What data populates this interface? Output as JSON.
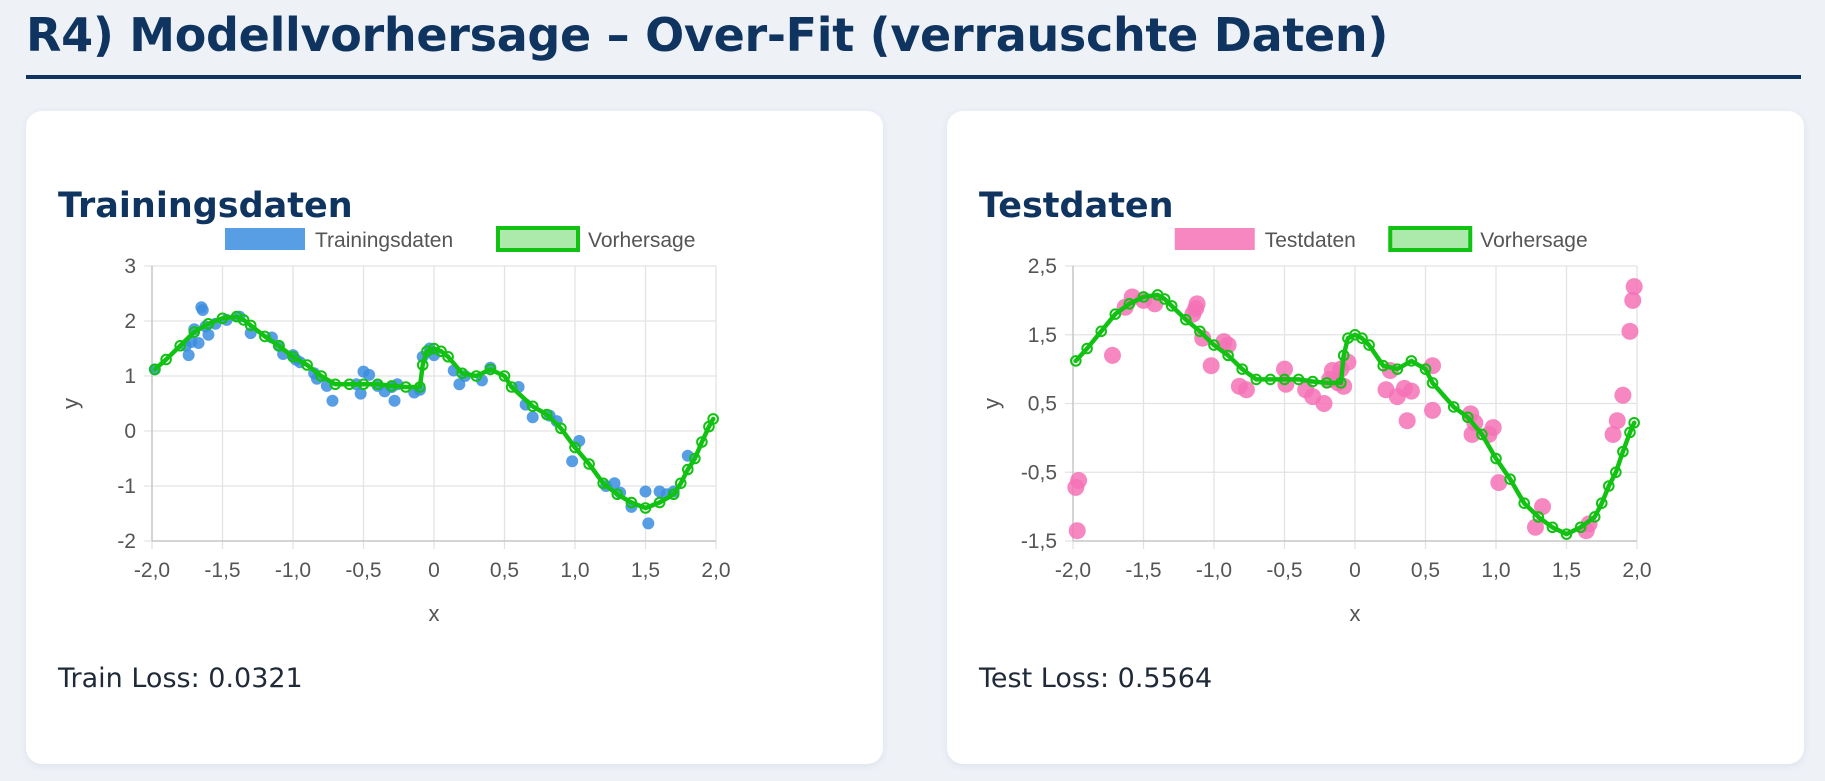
{
  "page": {
    "title": "R4) Modellvorhersage – Over-Fit (verrauschte Daten)"
  },
  "colors": {
    "title": "#0f3460",
    "train_points": "#3b8de0",
    "test_points": "#f472b6",
    "prediction_line": "#12c212",
    "grid": "#e3e3e3"
  },
  "cards": {
    "train": {
      "title": "Trainingsdaten",
      "loss": "Train Loss: 0.0321"
    },
    "test": {
      "title": "Testdaten",
      "loss": "Test Loss: 0.5564"
    }
  },
  "chart_data": [
    {
      "type": "scatter",
      "title": "Trainingsdaten",
      "xlabel": "x",
      "ylabel": "y",
      "xlim": [
        -2.0,
        2.0
      ],
      "ylim": [
        -2,
        3
      ],
      "xticks": [
        -2.0,
        -1.5,
        -1.0,
        -0.5,
        0,
        0.5,
        1.0,
        1.5,
        2.0
      ],
      "xtick_labels": [
        "-2,0",
        "-1,5",
        "-1,0",
        "-0,5",
        "0",
        "0,5",
        "1,0",
        "1,5",
        "2,0"
      ],
      "yticks": [
        3,
        2,
        1,
        0,
        -1,
        -2
      ],
      "ytick_labels": [
        "3",
        "2",
        "1",
        "0",
        "-1",
        "-2"
      ],
      "grid": true,
      "legend_position": "top-center",
      "legend": [
        "Trainingsdaten",
        "Vorhersage"
      ],
      "series": [
        {
          "name": "Trainingsdaten",
          "kind": "points",
          "color": "#3b8de0",
          "points": [
            [
              -1.98,
              1.12
            ],
            [
              -1.76,
              1.55
            ],
            [
              -1.74,
              1.38
            ],
            [
              -1.72,
              1.62
            ],
            [
              -1.7,
              1.85
            ],
            [
              -1.67,
              1.6
            ],
            [
              -1.65,
              2.25
            ],
            [
              -1.64,
              2.2
            ],
            [
              -1.62,
              1.9
            ],
            [
              -1.6,
              1.75
            ],
            [
              -1.55,
              1.95
            ],
            [
              -1.47,
              2.02
            ],
            [
              -1.38,
              2.08
            ],
            [
              -1.3,
              1.78
            ],
            [
              -1.15,
              1.7
            ],
            [
              -1.1,
              1.55
            ],
            [
              -1.07,
              1.4
            ],
            [
              -1.0,
              1.38
            ],
            [
              -0.98,
              1.3
            ],
            [
              -0.95,
              1.25
            ],
            [
              -0.85,
              1.05
            ],
            [
              -0.83,
              0.95
            ],
            [
              -0.76,
              0.82
            ],
            [
              -0.72,
              0.55
            ],
            [
              -0.55,
              0.85
            ],
            [
              -0.52,
              0.68
            ],
            [
              -0.5,
              1.08
            ],
            [
              -0.46,
              1.02
            ],
            [
              -0.4,
              0.82
            ],
            [
              -0.35,
              0.72
            ],
            [
              -0.3,
              0.8
            ],
            [
              -0.28,
              0.55
            ],
            [
              -0.26,
              0.85
            ],
            [
              -0.14,
              0.7
            ],
            [
              -0.1,
              0.75
            ],
            [
              -0.08,
              1.35
            ],
            [
              -0.03,
              1.5
            ],
            [
              0.0,
              1.38
            ],
            [
              0.14,
              1.1
            ],
            [
              0.18,
              0.85
            ],
            [
              0.22,
              1.0
            ],
            [
              0.34,
              0.92
            ],
            [
              0.4,
              1.15
            ],
            [
              0.6,
              0.8
            ],
            [
              0.65,
              0.48
            ],
            [
              0.7,
              0.25
            ],
            [
              0.82,
              0.28
            ],
            [
              0.87,
              0.18
            ],
            [
              0.98,
              -0.55
            ],
            [
              1.03,
              -0.18
            ],
            [
              1.22,
              -1.0
            ],
            [
              1.28,
              -0.95
            ],
            [
              1.32,
              -1.12
            ],
            [
              1.4,
              -1.38
            ],
            [
              1.5,
              -1.1
            ],
            [
              1.52,
              -1.68
            ],
            [
              1.6,
              -1.1
            ],
            [
              1.65,
              -1.15
            ],
            [
              1.7,
              -1.1
            ],
            [
              1.8,
              -0.45
            ]
          ]
        },
        {
          "name": "Vorhersage",
          "kind": "line",
          "color": "#12c212",
          "points": [
            [
              -1.98,
              1.12
            ],
            [
              -1.9,
              1.3
            ],
            [
              -1.8,
              1.55
            ],
            [
              -1.7,
              1.8
            ],
            [
              -1.6,
              1.95
            ],
            [
              -1.5,
              2.05
            ],
            [
              -1.4,
              2.08
            ],
            [
              -1.35,
              2.02
            ],
            [
              -1.3,
              1.92
            ],
            [
              -1.2,
              1.72
            ],
            [
              -1.1,
              1.55
            ],
            [
              -1.0,
              1.35
            ],
            [
              -0.9,
              1.2
            ],
            [
              -0.8,
              1.0
            ],
            [
              -0.7,
              0.85
            ],
            [
              -0.6,
              0.85
            ],
            [
              -0.5,
              0.85
            ],
            [
              -0.4,
              0.85
            ],
            [
              -0.3,
              0.82
            ],
            [
              -0.2,
              0.8
            ],
            [
              -0.1,
              0.8
            ],
            [
              -0.08,
              1.2
            ],
            [
              -0.05,
              1.45
            ],
            [
              0.0,
              1.5
            ],
            [
              0.05,
              1.45
            ],
            [
              0.1,
              1.35
            ],
            [
              0.2,
              1.05
            ],
            [
              0.3,
              1.0
            ],
            [
              0.4,
              1.12
            ],
            [
              0.5,
              1.0
            ],
            [
              0.55,
              0.8
            ],
            [
              0.7,
              0.45
            ],
            [
              0.8,
              0.3
            ],
            [
              0.9,
              0.05
            ],
            [
              1.0,
              -0.3
            ],
            [
              1.1,
              -0.6
            ],
            [
              1.2,
              -0.95
            ],
            [
              1.3,
              -1.15
            ],
            [
              1.4,
              -1.3
            ],
            [
              1.5,
              -1.4
            ],
            [
              1.6,
              -1.3
            ],
            [
              1.7,
              -1.15
            ],
            [
              1.75,
              -0.95
            ],
            [
              1.8,
              -0.7
            ],
            [
              1.85,
              -0.5
            ],
            [
              1.9,
              -0.2
            ],
            [
              1.95,
              0.08
            ],
            [
              1.98,
              0.22
            ]
          ]
        }
      ]
    },
    {
      "type": "scatter",
      "title": "Testdaten",
      "xlabel": "x",
      "ylabel": "y",
      "xlim": [
        -2.0,
        2.0
      ],
      "ylim": [
        -1.5,
        2.5
      ],
      "xticks": [
        -2.0,
        -1.5,
        -1.0,
        -0.5,
        0,
        0.5,
        1.0,
        1.5,
        2.0
      ],
      "xtick_labels": [
        "-2,0",
        "-1,5",
        "-1,0",
        "-0,5",
        "0",
        "0,5",
        "1,0",
        "1,5",
        "2,0"
      ],
      "yticks": [
        2.5,
        1.5,
        0.5,
        -0.5,
        -1.5
      ],
      "ytick_labels": [
        "2,5",
        "1,5",
        "0,5",
        "-0,5",
        "-1,5"
      ],
      "grid": true,
      "legend_position": "top-center",
      "legend": [
        "Testdaten",
        "Vorhersage"
      ],
      "series": [
        {
          "name": "Testdaten",
          "kind": "points",
          "color": "#f472b6",
          "points": [
            [
              -1.98,
              -0.72
            ],
            [
              -1.96,
              -0.62
            ],
            [
              -1.97,
              -1.35
            ],
            [
              -1.72,
              1.2
            ],
            [
              -1.63,
              1.9
            ],
            [
              -1.58,
              2.05
            ],
            [
              -1.5,
              2.0
            ],
            [
              -1.42,
              1.95
            ],
            [
              -1.15,
              1.8
            ],
            [
              -1.13,
              1.88
            ],
            [
              -1.12,
              1.95
            ],
            [
              -1.08,
              1.45
            ],
            [
              -1.02,
              1.05
            ],
            [
              -0.93,
              1.4
            ],
            [
              -0.9,
              1.35
            ],
            [
              -0.82,
              0.75
            ],
            [
              -0.77,
              0.7
            ],
            [
              -0.5,
              1.0
            ],
            [
              -0.49,
              0.78
            ],
            [
              -0.35,
              0.7
            ],
            [
              -0.3,
              0.6
            ],
            [
              -0.22,
              0.5
            ],
            [
              -0.18,
              0.85
            ],
            [
              -0.16,
              0.98
            ],
            [
              -0.12,
              0.8
            ],
            [
              -0.1,
              1.0
            ],
            [
              -0.08,
              0.75
            ],
            [
              -0.05,
              1.1
            ],
            [
              0.22,
              0.7
            ],
            [
              0.25,
              0.98
            ],
            [
              0.3,
              0.6
            ],
            [
              0.35,
              0.72
            ],
            [
              0.37,
              0.25
            ],
            [
              0.4,
              0.68
            ],
            [
              0.55,
              0.4
            ],
            [
              0.55,
              1.05
            ],
            [
              0.82,
              0.35
            ],
            [
              0.83,
              0.05
            ],
            [
              0.85,
              0.22
            ],
            [
              0.95,
              0.05
            ],
            [
              0.98,
              0.15
            ],
            [
              1.02,
              -0.65
            ],
            [
              1.28,
              -1.3
            ],
            [
              1.33,
              -1.0
            ],
            [
              1.64,
              -1.35
            ],
            [
              1.66,
              -1.25
            ],
            [
              1.83,
              0.05
            ],
            [
              1.86,
              0.25
            ],
            [
              1.9,
              0.62
            ],
            [
              1.95,
              1.55
            ],
            [
              1.97,
              2.0
            ],
            [
              1.98,
              2.2
            ]
          ]
        },
        {
          "name": "Vorhersage",
          "kind": "line",
          "color": "#12c212",
          "points": [
            [
              -1.98,
              1.12
            ],
            [
              -1.9,
              1.3
            ],
            [
              -1.8,
              1.55
            ],
            [
              -1.7,
              1.8
            ],
            [
              -1.6,
              1.95
            ],
            [
              -1.5,
              2.05
            ],
            [
              -1.4,
              2.08
            ],
            [
              -1.35,
              2.02
            ],
            [
              -1.3,
              1.92
            ],
            [
              -1.2,
              1.72
            ],
            [
              -1.1,
              1.55
            ],
            [
              -1.0,
              1.35
            ],
            [
              -0.9,
              1.2
            ],
            [
              -0.8,
              1.0
            ],
            [
              -0.7,
              0.85
            ],
            [
              -0.6,
              0.85
            ],
            [
              -0.5,
              0.85
            ],
            [
              -0.4,
              0.85
            ],
            [
              -0.3,
              0.82
            ],
            [
              -0.2,
              0.8
            ],
            [
              -0.1,
              0.8
            ],
            [
              -0.08,
              1.2
            ],
            [
              -0.05,
              1.45
            ],
            [
              0.0,
              1.5
            ],
            [
              0.05,
              1.45
            ],
            [
              0.1,
              1.35
            ],
            [
              0.2,
              1.05
            ],
            [
              0.3,
              1.0
            ],
            [
              0.4,
              1.12
            ],
            [
              0.5,
              1.0
            ],
            [
              0.55,
              0.8
            ],
            [
              0.7,
              0.45
            ],
            [
              0.8,
              0.3
            ],
            [
              0.9,
              0.05
            ],
            [
              1.0,
              -0.3
            ],
            [
              1.1,
              -0.6
            ],
            [
              1.2,
              -0.95
            ],
            [
              1.3,
              -1.15
            ],
            [
              1.4,
              -1.3
            ],
            [
              1.5,
              -1.4
            ],
            [
              1.6,
              -1.3
            ],
            [
              1.7,
              -1.15
            ],
            [
              1.75,
              -0.95
            ],
            [
              1.8,
              -0.7
            ],
            [
              1.85,
              -0.5
            ],
            [
              1.9,
              -0.2
            ],
            [
              1.95,
              0.08
            ],
            [
              1.98,
              0.22
            ]
          ]
        }
      ]
    }
  ]
}
